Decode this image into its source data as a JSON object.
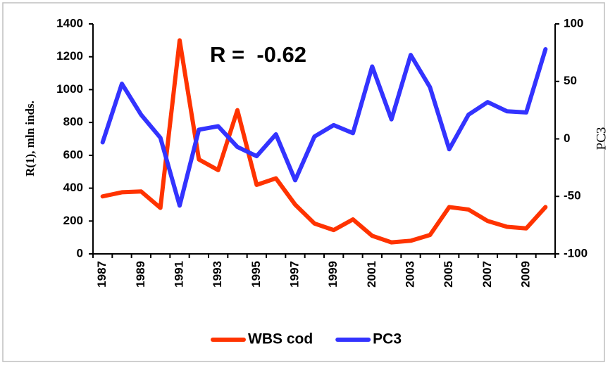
{
  "chart_data": {
    "type": "line",
    "annotation": "R =  -0.62",
    "y_label": "R(1), mln inds.",
    "y2_label": "PC3",
    "categories": [
      "1987",
      null,
      "1989",
      null,
      "1991",
      null,
      "1993",
      null,
      "1995",
      null,
      "1997",
      null,
      "1999",
      null,
      "2001",
      null,
      "2003",
      null,
      "2005",
      null,
      "2007",
      null,
      "2009",
      null
    ],
    "series": [
      {
        "name": "WBS cod",
        "color": "#ff3300",
        "values": [
          350,
          375,
          380,
          280,
          1300,
          575,
          510,
          875,
          420,
          460,
          300,
          185,
          145,
          210,
          110,
          70,
          80,
          115,
          285,
          270,
          200,
          165,
          155,
          285
        ]
      },
      {
        "name": "PC3",
        "color": "#3333ff",
        "axis": "y2",
        "values": [
          -3,
          48,
          21,
          1,
          -58,
          8,
          11,
          -7,
          -15,
          4,
          -36,
          2,
          12,
          5,
          63,
          17,
          73,
          45,
          -9,
          21,
          32,
          24,
          23,
          78
        ]
      }
    ],
    "ylim": [
      0,
      1400
    ],
    "yticks": [
      0,
      200,
      400,
      600,
      800,
      1000,
      1200,
      1400
    ],
    "y2lim": [
      -100,
      100
    ],
    "y2ticks": [
      -100,
      -50,
      0,
      50,
      100
    ],
    "legend": "bottom"
  }
}
